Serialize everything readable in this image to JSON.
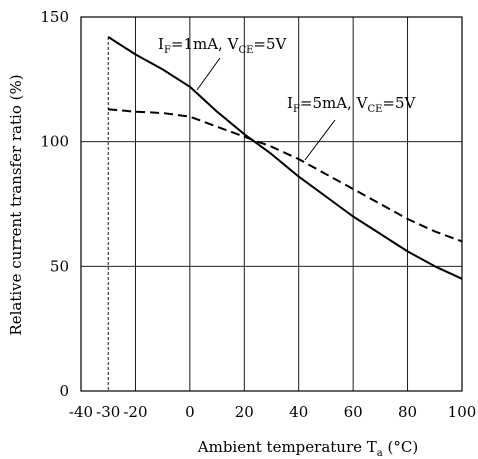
{
  "chart_data": {
    "type": "line",
    "xlabel": "Ambient temperature T",
    "xlabel_sub": "a",
    "xlabel_unit": " (°C)",
    "ylabel": "Relative current transfer ratio (%)",
    "xlim": [
      -40,
      100
    ],
    "ylim": [
      0,
      150
    ],
    "x_ticks": [
      -40,
      -30,
      -20,
      0,
      20,
      40,
      60,
      80,
      100
    ],
    "x_tick_labels": [
      "-40",
      "-30",
      "-20",
      "0",
      "20",
      "40",
      "60",
      "80",
      "100"
    ],
    "y_ticks": [
      0,
      50,
      100,
      150
    ],
    "y_tick_labels": [
      "0",
      "50",
      "100",
      "150"
    ],
    "x_gridlines": [
      -20,
      0,
      20,
      40,
      60,
      80
    ],
    "y_gridlines": [
      50,
      100
    ],
    "reference_line": {
      "x": -30,
      "style": "dashed"
    },
    "grid": true,
    "series": [
      {
        "label_parts": [
          "I",
          "F",
          "=1mA, V",
          "CE",
          "=5V"
        ],
        "style": "solid",
        "points": [
          [
            -30,
            142
          ],
          [
            -20,
            135
          ],
          [
            -10,
            129
          ],
          [
            0,
            122
          ],
          [
            10,
            112
          ],
          [
            20,
            103
          ],
          [
            30,
            95
          ],
          [
            40,
            86
          ],
          [
            50,
            78
          ],
          [
            60,
            70
          ],
          [
            70,
            63
          ],
          [
            80,
            56
          ],
          [
            90,
            50
          ],
          [
            100,
            45
          ]
        ]
      },
      {
        "label_parts": [
          "I",
          "F",
          "=5mA, V",
          "CE",
          "=5V"
        ],
        "style": "dashed",
        "points": [
          [
            -30,
            113
          ],
          [
            -20,
            112
          ],
          [
            -10,
            111.5
          ],
          [
            0,
            110
          ],
          [
            10,
            106
          ],
          [
            20,
            102
          ],
          [
            30,
            98
          ],
          [
            40,
            93
          ],
          [
            50,
            87
          ],
          [
            60,
            81
          ],
          [
            70,
            75
          ],
          [
            80,
            69
          ],
          [
            90,
            64
          ],
          [
            100,
            60
          ]
        ]
      }
    ]
  }
}
